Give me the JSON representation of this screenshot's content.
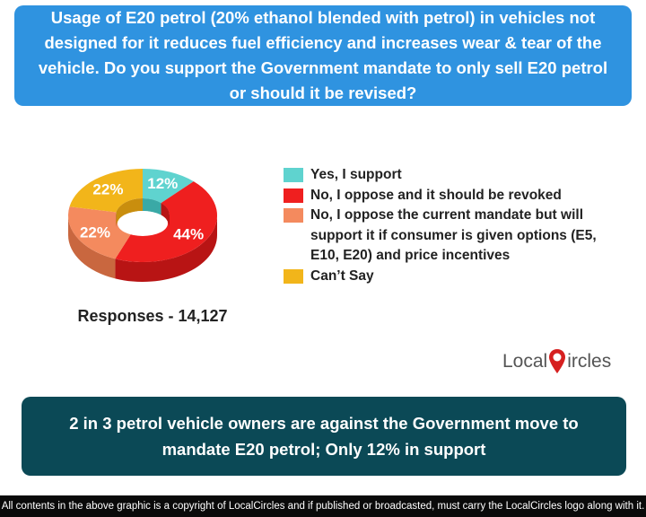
{
  "question": "Usage of E20 petrol (20% ethanol blended with petrol) in vehicles not designed for it reduces fuel efficiency and increases wear & tear of the vehicle. Do you support the Government mandate to only sell E20 petrol or should it be revised?",
  "responses_label": "Responses - 14,127",
  "logo": {
    "left": "Local",
    "right": "ircles"
  },
  "conclusion": "2 in 3 petrol vehicle owners are against the Government move to mandate E20 petrol; Only 12% in support",
  "footer": "All contents in the above graphic is a copyright of LocalCircles and if published or broadcasted, must carry the LocalCircles logo along with it.",
  "chart_data": {
    "type": "pie",
    "style": "3d-donut",
    "categories": [
      "Yes, I support",
      "No, I oppose and it should be revoked",
      "No, I oppose the current mandate but will support it if consumer is given options (E5, E10, E20) and price incentives",
      "Can’t Say"
    ],
    "values": [
      12,
      44,
      22,
      22
    ],
    "labels": [
      "12%",
      "44%",
      "22%",
      "22%"
    ],
    "colors": [
      "#5fd3cf",
      "#ef1f1f",
      "#f48a5e",
      "#f2b51a"
    ],
    "side_colors": [
      "#3aa9a6",
      "#b81414",
      "#c9673f",
      "#c98e0e"
    ],
    "legend_position": "right"
  }
}
